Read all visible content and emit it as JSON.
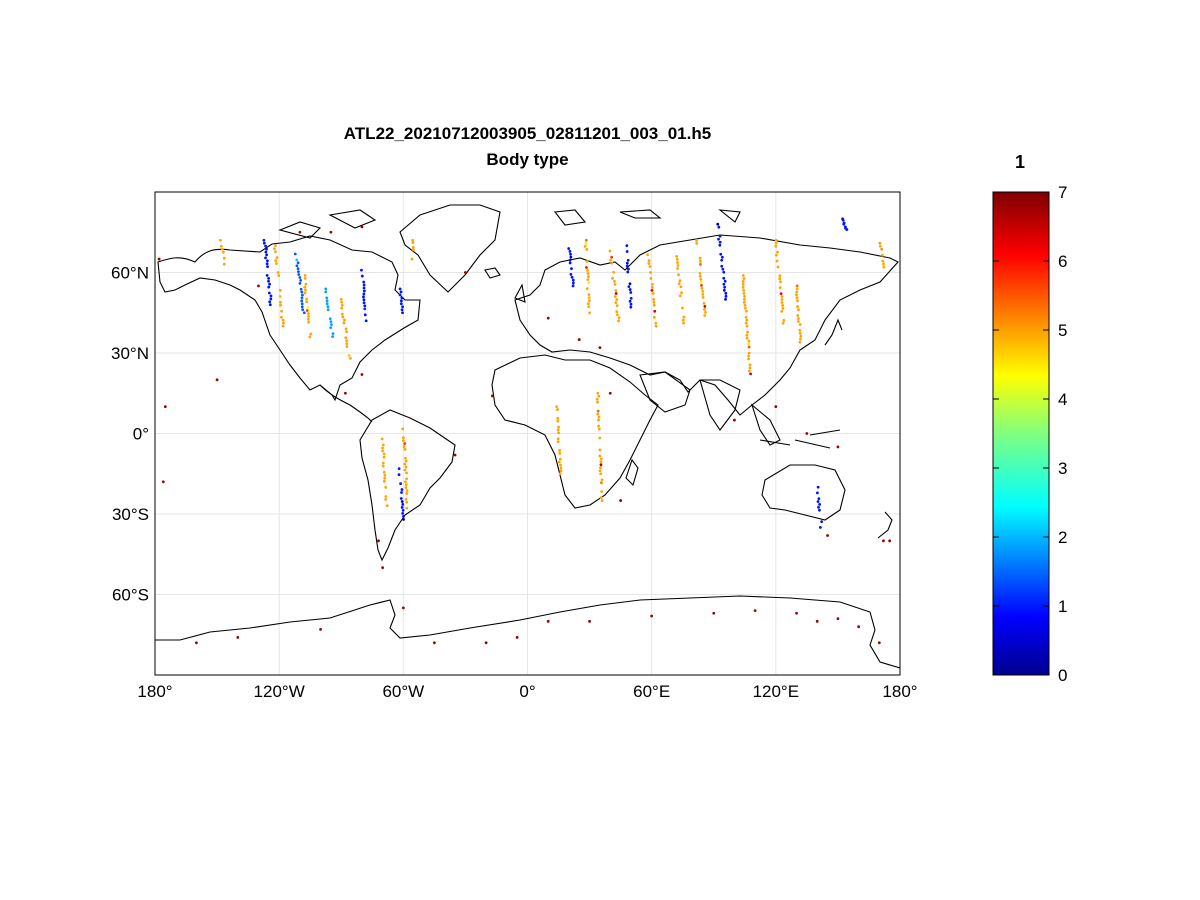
{
  "figure": {
    "title_line1": "ATL22_20210712003905_02811201_003_01.h5",
    "title_line2": "Body type"
  },
  "map": {
    "projection": "equirectangular",
    "lon_range": [
      -180,
      180
    ],
    "lat_range": [
      -90,
      90
    ],
    "x_ticks": [
      {
        "value": -180,
        "label": "180°"
      },
      {
        "value": -120,
        "label": "120°W"
      },
      {
        "value": -60,
        "label": "60°W"
      },
      {
        "value": 0,
        "label": "0°"
      },
      {
        "value": 60,
        "label": "60°E"
      },
      {
        "value": 120,
        "label": "120°E"
      },
      {
        "value": 180,
        "label": "180°"
      }
    ],
    "y_ticks": [
      {
        "value": 60,
        "label": "60°N"
      },
      {
        "value": 30,
        "label": "30°N"
      },
      {
        "value": 0,
        "label": "0°"
      },
      {
        "value": -30,
        "label": "30°S"
      },
      {
        "value": -60,
        "label": "60°S"
      }
    ],
    "grid": true
  },
  "colorbar": {
    "label": "1",
    "min": 0,
    "max": 7,
    "colormap": "jet",
    "ticks": [
      "0",
      "1",
      "2",
      "3",
      "4",
      "5",
      "6",
      "7"
    ]
  },
  "chart_data": {
    "type": "scatter",
    "description_of_tracks": "ICESat-2 ground tracks colored by body type value",
    "tracks": [
      {
        "lon": [
          -148,
          -146
        ],
        "lat": [
          72,
          62
        ],
        "value": 5.0
      },
      {
        "lon": [
          -127,
          -124
        ],
        "lat": [
          72,
          48
        ],
        "value": 1.0
      },
      {
        "lon": [
          -122,
          -118
        ],
        "lat": [
          70,
          40
        ],
        "value": 5.0
      },
      {
        "lon": [
          -112,
          -108
        ],
        "lat": [
          68,
          45
        ],
        "value": 1.5
      },
      {
        "lon": [
          -108,
          -105
        ],
        "lat": [
          60,
          36
        ],
        "value": 5.0
      },
      {
        "lon": [
          -98,
          -94
        ],
        "lat": [
          55,
          35
        ],
        "value": 2.0
      },
      {
        "lon": [
          -90,
          -86
        ],
        "lat": [
          50,
          28
        ],
        "value": 5.0
      },
      {
        "lon": [
          -80,
          -78
        ],
        "lat": [
          62,
          42
        ],
        "value": 1.0
      },
      {
        "lon": [
          -62,
          -60
        ],
        "lat": [
          55,
          45
        ],
        "value": 1.0
      },
      {
        "lon": [
          -55,
          -56
        ],
        "lat": [
          72,
          65
        ],
        "value": 5.0
      },
      {
        "lon": [
          -60,
          -58
        ],
        "lat": [
          5,
          -30
        ],
        "value": 5.0
      },
      {
        "lon": [
          -62,
          -60
        ],
        "lat": [
          -12,
          -32
        ],
        "value": 1.0
      },
      {
        "lon": [
          -70,
          -68
        ],
        "lat": [
          -2,
          -28
        ],
        "value": 5.0
      },
      {
        "lon": [
          14,
          16
        ],
        "lat": [
          10,
          -15
        ],
        "value": 5.0
      },
      {
        "lon": [
          34,
          36
        ],
        "lat": [
          15,
          -25
        ],
        "value": 5.0
      },
      {
        "lon": [
          20,
          22
        ],
        "lat": [
          70,
          55
        ],
        "value": 1.0
      },
      {
        "lon": [
          28,
          30
        ],
        "lat": [
          72,
          45
        ],
        "value": 5.0
      },
      {
        "lon": [
          40,
          44
        ],
        "lat": [
          68,
          42
        ],
        "value": 5.0
      },
      {
        "lon": [
          48,
          50
        ],
        "lat": [
          70,
          46
        ],
        "value": 1.0
      },
      {
        "lon": [
          58,
          62
        ],
        "lat": [
          70,
          40
        ],
        "value": 5.0
      },
      {
        "lon": [
          72,
          76
        ],
        "lat": [
          66,
          40
        ],
        "value": 5.0
      },
      {
        "lon": [
          82,
          86
        ],
        "lat": [
          72,
          44
        ],
        "value": 5.0
      },
      {
        "lon": [
          92,
          96
        ],
        "lat": [
          78,
          50
        ],
        "value": 1.0
      },
      {
        "lon": [
          104,
          108
        ],
        "lat": [
          60,
          20
        ],
        "value": 5.0
      },
      {
        "lon": [
          120,
          124
        ],
        "lat": [
          72,
          40
        ],
        "value": 5.0
      },
      {
        "lon": [
          130,
          132
        ],
        "lat": [
          55,
          34
        ],
        "value": 5.0
      },
      {
        "lon": [
          170,
          172
        ],
        "lat": [
          72,
          62
        ],
        "value": 5.0
      },
      {
        "lon": [
          140,
          142
        ],
        "lat": [
          -20,
          -35
        ],
        "value": 1.0
      },
      {
        "lon": [
          152,
          154
        ],
        "lat": [
          80,
          76
        ],
        "value": 1.0
      }
    ],
    "scattered_points_value": 6.8
  }
}
